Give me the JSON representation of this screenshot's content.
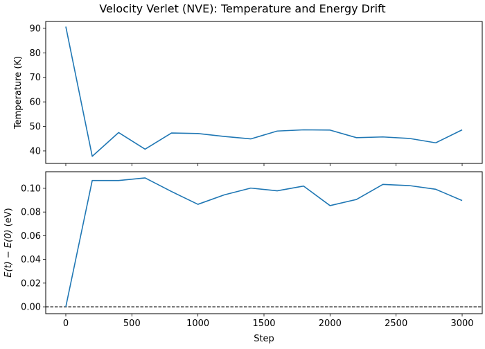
{
  "title": "Velocity Verlet (NVE): Temperature and Energy Drift",
  "chart_data": [
    {
      "type": "line",
      "ylabel": "Temperature (K)",
      "xlabel": "",
      "x": [
        0,
        200,
        400,
        600,
        800,
        1000,
        1200,
        1400,
        1600,
        1800,
        2000,
        2200,
        2400,
        2600,
        2800,
        3000
      ],
      "series": [
        {
          "values": [
            90.7,
            37.8,
            47.5,
            40.7,
            47.3,
            47.1,
            45.9,
            44.9,
            48.1,
            48.6,
            48.5,
            45.4,
            45.7,
            45.1,
            43.3,
            48.6
          ],
          "color": "#1f77b4"
        }
      ],
      "xlim": [
        -152,
        3152
      ],
      "ylim": [
        34.9,
        92.8
      ],
      "xticks": [
        0,
        500,
        1000,
        1500,
        2000,
        2500,
        3000
      ],
      "yticks": [
        40,
        50,
        60,
        70,
        80,
        90
      ],
      "ytick_labels": [
        "40",
        "50",
        "60",
        "70",
        "80",
        "90"
      ],
      "grid": false
    },
    {
      "type": "line",
      "ylabel_parts": {
        "math": "E(t) − E(0)",
        "unit": " (eV)"
      },
      "xlabel": "Step",
      "x": [
        0,
        200,
        400,
        600,
        800,
        1000,
        1200,
        1400,
        1600,
        1800,
        2000,
        2200,
        2400,
        2600,
        2800,
        3000
      ],
      "series": [
        {
          "values": [
            0.0,
            0.1066,
            0.1066,
            0.1088,
            0.0973,
            0.0865,
            0.0945,
            0.1002,
            0.0979,
            0.1019,
            0.0854,
            0.0906,
            0.1033,
            0.1023,
            0.0992,
            0.0897
          ],
          "color": "#1f77b4"
        }
      ],
      "reference_line": {
        "y": 0.0,
        "style": "dashed",
        "color": "#000000"
      },
      "xlim": [
        -152,
        3152
      ],
      "ylim": [
        -0.0058,
        0.114
      ],
      "xticks": [
        0,
        500,
        1000,
        1500,
        2000,
        2500,
        3000
      ],
      "xtick_labels": [
        "0",
        "500",
        "1000",
        "1500",
        "2000",
        "2500",
        "3000"
      ],
      "yticks": [
        0,
        0.02,
        0.04,
        0.06,
        0.08,
        0.1
      ],
      "ytick_labels": [
        "0.00",
        "0.02",
        "0.04",
        "0.06",
        "0.08",
        "0.10"
      ],
      "grid": false
    }
  ]
}
